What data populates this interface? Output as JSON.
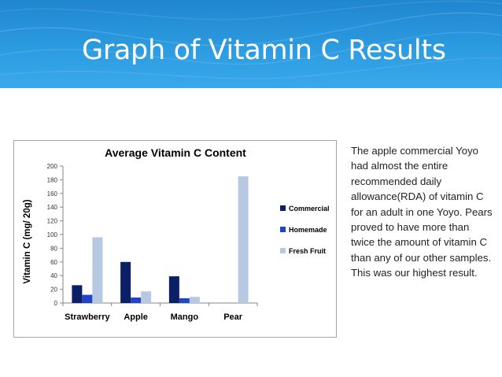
{
  "slide": {
    "title": "Graph of Vitamin C Results",
    "body_text": "The apple commercial Yoyo had almost the entire recommended daily allowance(RDA) of vitamin C for an adult in one Yoyo. Pears proved to have more than twice the amount of vitamin C than any of our other samples. This was our highest result.",
    "header_color": "#2a95dc"
  },
  "chart_data": {
    "type": "bar",
    "title": "Average Vitamin C Content",
    "xlabel": "",
    "ylabel": "Vitamin C (mg/ 20g)",
    "ylim": [
      0,
      200
    ],
    "yticks": [
      0,
      20,
      40,
      60,
      80,
      100,
      120,
      140,
      160,
      180,
      200
    ],
    "categories": [
      "Strawberry",
      "Apple",
      "Mango",
      "Pear"
    ],
    "series": [
      {
        "name": "Commercial",
        "color": "#0b1f66",
        "values": [
          26,
          60,
          39,
          null
        ]
      },
      {
        "name": "Homemade",
        "color": "#1f45c8",
        "values": [
          12,
          8,
          7,
          null
        ]
      },
      {
        "name": "Fresh Fruit",
        "color": "#b7c9e2",
        "values": [
          96,
          17,
          9,
          185
        ]
      }
    ],
    "grid": false,
    "legend_position": "right"
  }
}
